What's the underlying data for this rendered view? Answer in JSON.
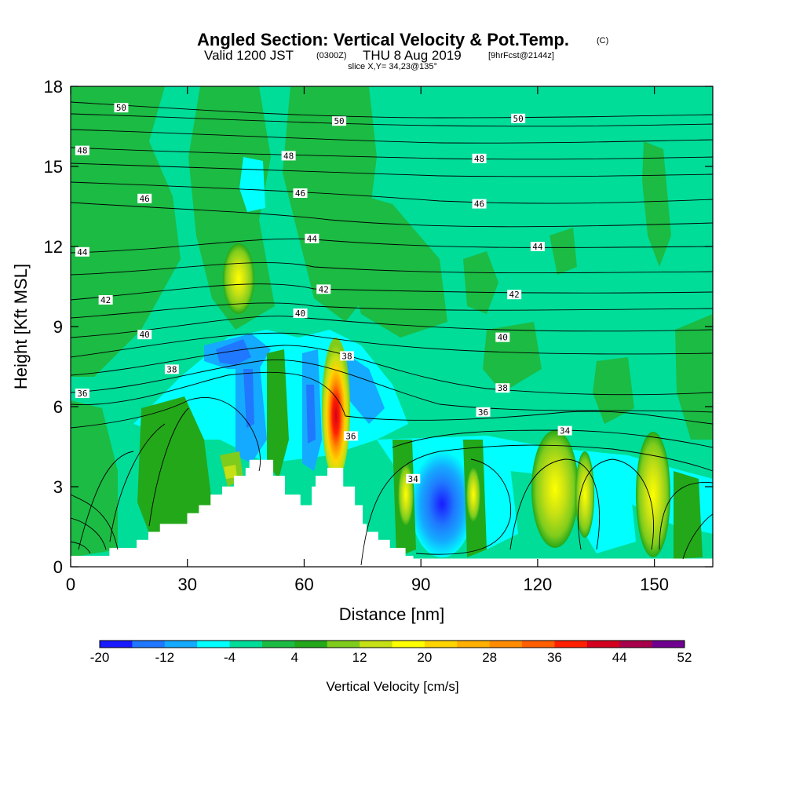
{
  "header": {
    "title_main": "Angled Section: Vertical Velocity & Pot.Temp.",
    "title_mark": "(C)",
    "valid_prefix": "Valid 1200 JST",
    "valid_utc": "(0300Z)",
    "valid_date": "THU 8 Aug 2019",
    "forecast": "[9hrFcst@2144z]",
    "slice": "slice X,Y= 34,23@135°"
  },
  "chart_data": {
    "type": "heatmap",
    "title": "Angled Section: Vertical Velocity & Pot.Temp.",
    "xlabel": "Distance [nm]",
    "ylabel": "Height [Kft MSL]",
    "xlim": [
      0,
      165
    ],
    "ylim": [
      0,
      18
    ],
    "x_ticks": [
      0,
      30,
      60,
      90,
      120,
      150
    ],
    "y_ticks": [
      0,
      3,
      6,
      9,
      12,
      15,
      18
    ],
    "x_tick_labels": [
      "0",
      "30",
      "60",
      "90",
      "120",
      "150"
    ],
    "y_tick_labels": [
      "0",
      "3",
      "6",
      "9",
      "12",
      "15",
      "18"
    ],
    "colorbar": {
      "label": "Vertical Velocity [cm/s]",
      "tick_labels": [
        "-20",
        "-12",
        "-4",
        "4",
        "12",
        "20",
        "28",
        "36",
        "44",
        "52"
      ],
      "levels": [
        -20,
        -16,
        -12,
        -8,
        -4,
        0,
        4,
        8,
        12,
        16,
        20,
        24,
        28,
        32,
        36,
        40,
        44,
        48,
        52
      ],
      "colors": [
        "#1a1aff",
        "#1f78ff",
        "#14aaff",
        "#00ffff",
        "#00dd99",
        "#1cbb44",
        "#23a81a",
        "#7fcc1c",
        "#c5e014",
        "#ffff00",
        "#ffd500",
        "#ffb000",
        "#ff8c00",
        "#ff5f00",
        "#ff2000",
        "#d40020",
        "#a8004a",
        "#6f0090"
      ]
    },
    "terrain_nm_kft": [
      [
        0,
        0.4
      ],
      [
        10,
        0.4
      ],
      [
        10,
        0.7
      ],
      [
        17,
        0.7
      ],
      [
        17,
        1.0
      ],
      [
        20,
        1.0
      ],
      [
        20,
        1.3
      ],
      [
        23,
        1.3
      ],
      [
        23,
        1.6
      ],
      [
        30,
        1.6
      ],
      [
        30,
        2.0
      ],
      [
        33,
        2.0
      ],
      [
        33,
        2.3
      ],
      [
        36,
        2.3
      ],
      [
        36,
        2.7
      ],
      [
        39,
        2.7
      ],
      [
        39,
        3.0
      ],
      [
        42,
        3.0
      ],
      [
        42,
        3.4
      ],
      [
        45,
        3.4
      ],
      [
        45,
        3.7
      ],
      [
        46,
        3.7
      ],
      [
        46,
        4.0
      ],
      [
        52,
        4.0
      ],
      [
        52,
        3.4
      ],
      [
        55,
        3.4
      ],
      [
        55,
        2.7
      ],
      [
        59,
        2.7
      ],
      [
        59,
        2.3
      ],
      [
        62,
        2.3
      ],
      [
        62,
        3.0
      ],
      [
        63,
        3.0
      ],
      [
        63,
        3.4
      ],
      [
        66,
        3.4
      ],
      [
        66,
        3.7
      ],
      [
        70,
        3.7
      ],
      [
        70,
        3.0
      ],
      [
        73,
        3.0
      ],
      [
        73,
        2.3
      ],
      [
        75,
        2.3
      ],
      [
        75,
        1.6
      ],
      [
        76,
        1.6
      ],
      [
        76,
        1.3
      ],
      [
        79,
        1.3
      ],
      [
        79,
        1.0
      ],
      [
        82,
        1.0
      ],
      [
        82,
        0.7
      ],
      [
        86,
        0.7
      ],
      [
        86,
        0.4
      ],
      [
        88,
        0.4
      ],
      [
        88,
        0.3
      ],
      [
        165,
        0.3
      ]
    ],
    "theta_contours": [
      {
        "value": 50,
        "labels": [
          [
            13,
            17.2
          ],
          [
            69,
            16.7
          ],
          [
            115,
            16.8
          ]
        ]
      },
      {
        "value": 48,
        "labels": [
          [
            3,
            15.6
          ],
          [
            56,
            15.4
          ],
          [
            105,
            15.3
          ]
        ]
      },
      {
        "value": 46,
        "labels": [
          [
            19,
            13.8
          ],
          [
            59,
            14.0
          ],
          [
            105,
            13.6
          ]
        ]
      },
      {
        "value": 44,
        "labels": [
          [
            3,
            11.8
          ],
          [
            62,
            12.3
          ],
          [
            120,
            12.0
          ]
        ]
      },
      {
        "value": 42,
        "labels": [
          [
            9,
            10.0
          ],
          [
            65,
            10.4
          ],
          [
            114,
            10.2
          ]
        ]
      },
      {
        "value": 40,
        "labels": [
          [
            19,
            8.7
          ],
          [
            59,
            9.5
          ],
          [
            111,
            8.6
          ]
        ]
      },
      {
        "value": 38,
        "labels": [
          [
            26,
            7.4
          ],
          [
            71,
            7.9
          ],
          [
            111,
            6.7
          ]
        ]
      },
      {
        "value": 36,
        "labels": [
          [
            3,
            6.5
          ],
          [
            72,
            4.9
          ],
          [
            106,
            5.8
          ]
        ]
      },
      {
        "value": 34,
        "labels": [
          [
            88,
            3.3
          ],
          [
            127,
            5.1
          ]
        ]
      }
    ],
    "velocity_features": [
      {
        "name": "updraft-core",
        "x": 68,
        "y": 5.8,
        "peak": 40
      },
      {
        "name": "downdraft-east",
        "x": 95,
        "y": 2.2,
        "peak": -18
      },
      {
        "name": "downdraft-upper",
        "x": 41,
        "y": 8.2,
        "peak": -14
      },
      {
        "name": "updraft-east-1",
        "x": 127,
        "y": 3.0,
        "peak": 16
      },
      {
        "name": "updraft-east-2",
        "x": 150,
        "y": 2.7,
        "peak": 14
      },
      {
        "name": "updraft-upper",
        "x": 43,
        "y": 11.0,
        "peak": 10
      }
    ]
  }
}
